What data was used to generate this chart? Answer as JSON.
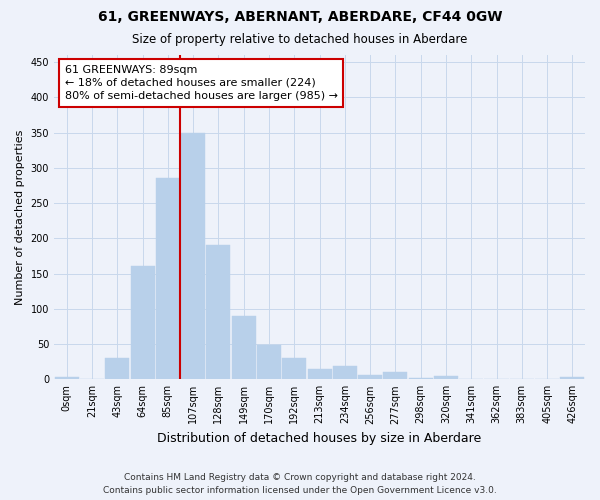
{
  "title": "61, GREENWAYS, ABERNANT, ABERDARE, CF44 0GW",
  "subtitle": "Size of property relative to detached houses in Aberdare",
  "xlabel": "Distribution of detached houses by size in Aberdare",
  "ylabel": "Number of detached properties",
  "footer_line1": "Contains HM Land Registry data © Crown copyright and database right 2024.",
  "footer_line2": "Contains public sector information licensed under the Open Government Licence v3.0.",
  "categories": [
    "0sqm",
    "21sqm",
    "43sqm",
    "64sqm",
    "85sqm",
    "107sqm",
    "128sqm",
    "149sqm",
    "170sqm",
    "192sqm",
    "213sqm",
    "234sqm",
    "256sqm",
    "277sqm",
    "298sqm",
    "320sqm",
    "341sqm",
    "362sqm",
    "383sqm",
    "405sqm",
    "426sqm"
  ],
  "values": [
    3,
    0,
    30,
    161,
    285,
    350,
    191,
    90,
    48,
    30,
    15,
    19,
    6,
    10,
    2,
    5,
    1,
    1,
    0,
    1,
    3
  ],
  "bar_color": "#b8d0ea",
  "bar_edgecolor": "#b8d0ea",
  "marker_line_color": "#cc0000",
  "annotation_line1": "61 GREENWAYS: 89sqm",
  "annotation_line2": "← 18% of detached houses are smaller (224)",
  "annotation_line3": "80% of semi-detached houses are larger (985) →",
  "annotation_box_facecolor": "#ffffff",
  "annotation_box_edgecolor": "#cc0000",
  "ylim": [
    0,
    460
  ],
  "yticks": [
    0,
    50,
    100,
    150,
    200,
    250,
    300,
    350,
    400,
    450
  ],
  "grid_color": "#c8d8ec",
  "background_color": "#eef2fa",
  "title_fontsize": 10,
  "subtitle_fontsize": 8.5,
  "xlabel_fontsize": 9,
  "ylabel_fontsize": 8,
  "tick_fontsize": 7,
  "footer_fontsize": 6.5,
  "annotation_fontsize": 8
}
